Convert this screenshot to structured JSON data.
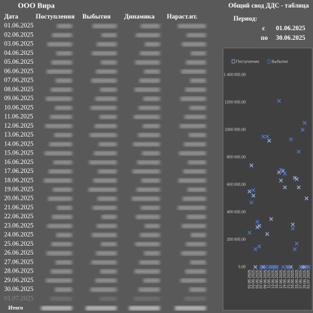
{
  "header": {
    "company": "ООО Вира",
    "report": "Общий свод ДДС - таблица",
    "period_label": "Период:",
    "from_label": "с",
    "from": "01.06.2025",
    "to_label": "по",
    "to": "30.06.2025"
  },
  "table": {
    "columns": [
      "Дата",
      "Поступления",
      "Выбытия",
      "Динамика",
      "Нараст.ит."
    ],
    "dates": [
      "01.06.2025",
      "02.06.2025",
      "03.06.2025",
      "04.06.2025",
      "05.06.2025",
      "06.06.2025",
      "07.06.2025",
      "08.06.2025",
      "09.06.2025",
      "10.06.2025",
      "11.06.2025",
      "12.06.2025",
      "13.06.2025",
      "14.06.2025",
      "15.06.2025",
      "16.06.2025",
      "17.06.2025",
      "18.06.2025",
      "19.06.2025",
      "20.06.2025",
      "21.06.2025",
      "22.06.2025",
      "23.06.2025",
      "24.06.2025",
      "25.06.2025",
      "26.06.2025",
      "27.06.2025",
      "28.06.2025",
      "29.06.2025",
      "30.06.2025",
      "01.07.2025"
    ],
    "total_label": "Итого"
  },
  "chart": {
    "type": "scatter",
    "categories": [
      "01.06.2025",
      null,
      "03.06.2025",
      null,
      "05.06.2025",
      null,
      "07.06.2025",
      null,
      "09.06.2025",
      null,
      "11.06.2025",
      null,
      "13.06.2025",
      null,
      "15.06.2025",
      null,
      "17.06.2025",
      null,
      "19.06.2025",
      null,
      "21.06.2025",
      null,
      "23.06.2025",
      null,
      "25.06.2025",
      null,
      "27.06.2025",
      null,
      "29.06.2025",
      null,
      "01.07.2025"
    ],
    "series": [
      {
        "name": "Поступления",
        "color": "#8faadc",
        "values": [
          550000,
          740000,
          520000,
          0,
          290000,
          300000,
          0,
          0,
          0,
          240000,
          920000,
          350000,
          0,
          0,
          0,
          690000,
          630000,
          700000,
          580000,
          0,
          0,
          0,
          310000,
          650000,
          640000,
          580000,
          0,
          0,
          0,
          500000,
          0
        ]
      },
      {
        "name": "Выбытия",
        "color": "#4f74c9",
        "values": [
          250000,
          470000,
          560000,
          130000,
          330000,
          150000,
          0,
          950000,
          0,
          950000,
          0,
          0,
          0,
          0,
          0,
          1210000,
          710000,
          0,
          680000,
          0,
          0,
          930000,
          280000,
          130000,
          170000,
          840000,
          0,
          1000000,
          1050000,
          0,
          0
        ]
      }
    ],
    "ylim": [
      0,
      1400000
    ],
    "yticks": [
      {
        "value": 0,
        "label": "0,00"
      },
      {
        "value": 200000,
        "label": "200 000,00"
      },
      {
        "value": 400000,
        "label": "400 000,00"
      },
      {
        "value": 600000,
        "label": "600 000,00"
      },
      {
        "value": 800000,
        "label": "800 000,00"
      },
      {
        "value": 1000000,
        "label": "1000 000,00"
      },
      {
        "value": 1200000,
        "label": "1200 000,00"
      },
      {
        "value": 1400000,
        "label": "1 400 000,00"
      }
    ]
  }
}
